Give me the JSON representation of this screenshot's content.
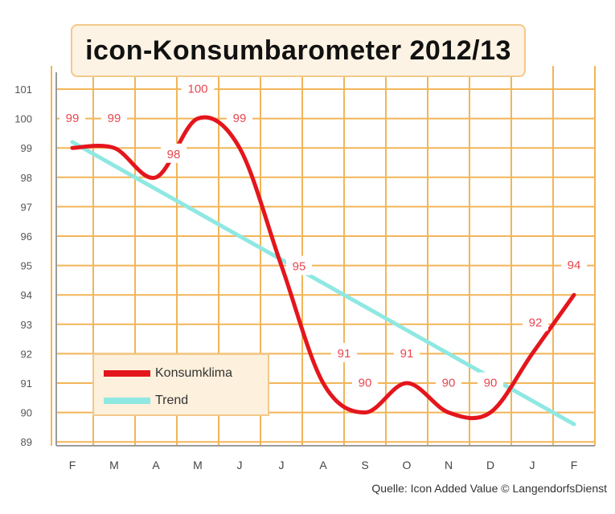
{
  "colors": {
    "grid": "#f2b558",
    "konsum": "#e4161d",
    "trend": "#8fe8e2",
    "label_bg": "#ffffff",
    "label_text": "#e8474f"
  },
  "chart_data": {
    "type": "line",
    "title": "icon-Konsumbarometer 2012/13",
    "categories": [
      "F",
      "M",
      "A",
      "M",
      "J",
      "J",
      "A",
      "S",
      "O",
      "N",
      "D",
      "J",
      "F"
    ],
    "y_ticks": [
      89,
      90,
      91,
      92,
      93,
      94,
      95,
      96,
      97,
      98,
      99,
      100,
      101
    ],
    "ylim": [
      89,
      101
    ],
    "grid": true,
    "legend": "bottom-left",
    "series": [
      {
        "name": "Konsumklima",
        "values": [
          99,
          99,
          98,
          100,
          99,
          95,
          91,
          90,
          91,
          90,
          90,
          92,
          94
        ],
        "labels": [
          "99",
          "99",
          "98",
          "100",
          "99",
          "95",
          "91",
          "90",
          "91",
          "90",
          "90",
          "92",
          "94"
        ]
      },
      {
        "name": "Trend",
        "values": [
          99.2,
          null,
          null,
          null,
          null,
          null,
          null,
          null,
          null,
          null,
          null,
          null,
          89.6
        ]
      }
    ],
    "source": "Quelle: Icon Added Value © LangendorfsDienst"
  }
}
